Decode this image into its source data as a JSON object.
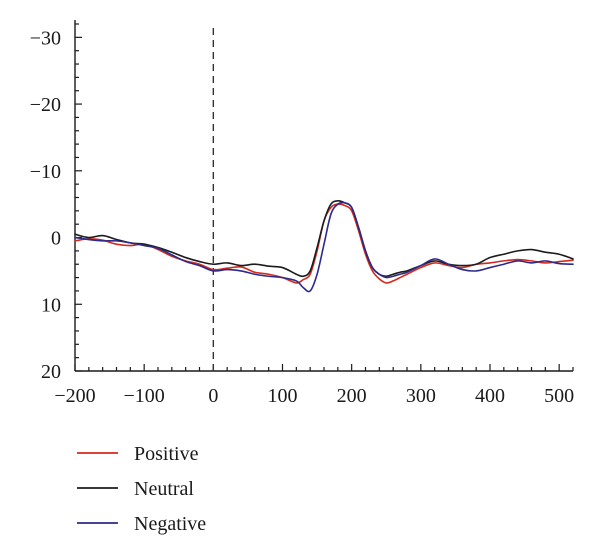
{
  "chart_data": {
    "type": "line",
    "title": "",
    "xlabel": "",
    "ylabel": "",
    "xlim": [
      -200,
      520
    ],
    "ylim": [
      -32,
      20
    ],
    "y_inverted": true,
    "grid": false,
    "legend_position": "bottom-left",
    "x_ticks": [
      -200,
      -100,
      0,
      100,
      200,
      300,
      400,
      500
    ],
    "x_tick_labels": [
      "−200",
      "−100",
      "0",
      "100",
      "200",
      "300",
      "400",
      "500"
    ],
    "y_ticks": [
      -30,
      -20,
      -10,
      0,
      10,
      20
    ],
    "y_tick_labels": [
      "−30",
      "−20",
      "−10",
      "0",
      "10",
      "20"
    ],
    "reference_line": {
      "x": 0,
      "style": "dashed"
    },
    "x": [
      -200,
      -180,
      -160,
      -140,
      -120,
      -100,
      -80,
      -60,
      -40,
      -20,
      0,
      20,
      40,
      60,
      80,
      100,
      120,
      130,
      140,
      150,
      160,
      170,
      180,
      190,
      200,
      210,
      220,
      230,
      240,
      250,
      260,
      270,
      280,
      300,
      320,
      340,
      360,
      380,
      400,
      420,
      440,
      460,
      480,
      500,
      520
    ],
    "series": [
      {
        "name": "Positive",
        "color": "#d42a1e",
        "values": [
          0.5,
          0.2,
          0.4,
          1.0,
          1.2,
          1.0,
          1.8,
          2.8,
          3.5,
          4.0,
          4.8,
          4.6,
          4.4,
          5.2,
          5.5,
          6.0,
          6.8,
          6.3,
          5.5,
          2.0,
          -2.5,
          -4.5,
          -5.0,
          -4.8,
          -4.0,
          -1.0,
          2.5,
          5.0,
          6.2,
          6.8,
          6.5,
          6.0,
          5.5,
          4.5,
          3.8,
          4.2,
          4.5,
          4.0,
          3.8,
          3.5,
          3.3,
          3.5,
          3.8,
          3.6,
          3.4
        ]
      },
      {
        "name": "Neutral",
        "color": "#1c1c1c",
        "values": [
          -0.5,
          0.0,
          -0.3,
          0.3,
          0.8,
          1.0,
          1.5,
          2.2,
          3.0,
          3.6,
          4.0,
          3.8,
          4.2,
          4.0,
          4.3,
          4.5,
          5.5,
          5.8,
          5.0,
          1.5,
          -2.5,
          -5.0,
          -5.5,
          -5.2,
          -4.5,
          -1.5,
          2.0,
          4.5,
          5.5,
          5.8,
          5.5,
          5.2,
          5.0,
          4.2,
          3.5,
          4.0,
          4.2,
          4.0,
          3.0,
          2.5,
          2.0,
          1.8,
          2.2,
          2.5,
          3.2
        ]
      },
      {
        "name": "Negative",
        "color": "#2c2a8a",
        "values": [
          0.0,
          0.3,
          0.5,
          0.5,
          0.8,
          1.2,
          1.6,
          2.6,
          3.6,
          4.2,
          5.0,
          4.8,
          5.0,
          5.5,
          5.8,
          6.0,
          6.5,
          7.5,
          8.0,
          5.5,
          1.0,
          -3.5,
          -5.0,
          -5.2,
          -4.5,
          -1.5,
          2.0,
          4.5,
          5.5,
          6.0,
          5.8,
          5.5,
          5.2,
          4.2,
          3.2,
          4.0,
          4.8,
          5.0,
          4.5,
          4.0,
          3.5,
          3.8,
          3.5,
          3.9,
          4.0
        ]
      }
    ]
  }
}
